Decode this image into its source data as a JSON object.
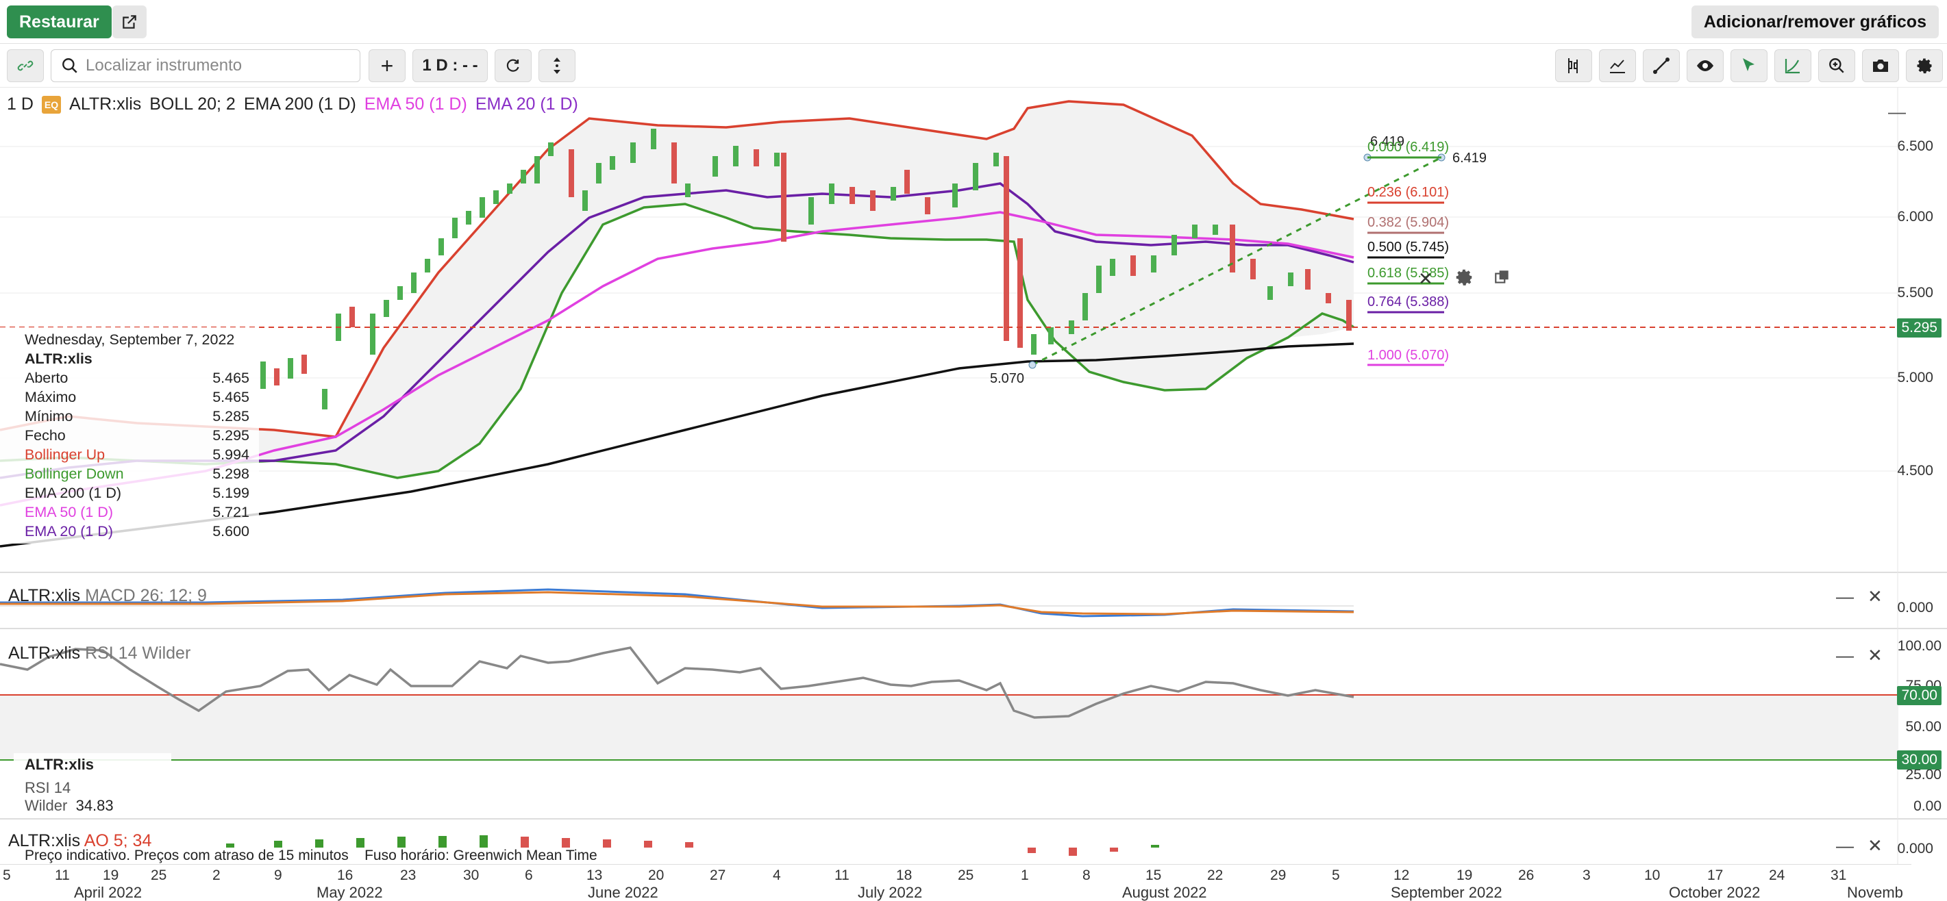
{
  "header": {
    "restore_label": "Restaurar",
    "add_remove_label": "Adicionar/remover gráficos"
  },
  "toolbar": {
    "search_placeholder": "Localizar instrumento",
    "interval_label": "1 D : - -",
    "plus_label": "+"
  },
  "legend": {
    "interval": "1 D",
    "badge": "EQ",
    "symbol": "ALTR:xlis",
    "boll": "BOLL 20; 2",
    "ema200": "EMA 200 (1 D)",
    "ema50": "EMA 50 (1 D)",
    "ema20": "EMA 20 (1 D)"
  },
  "colors": {
    "bollinger_up": "#d9412f",
    "bollinger_down": "#3d9a2e",
    "ema200": "#111111",
    "ema50": "#e040e0",
    "ema20": "#6a1fa5",
    "up_candle": "#4caf50",
    "down_candle": "#d9534f",
    "accent": "#2f8f4f"
  },
  "info": {
    "date": "Wednesday, September 7, 2022",
    "symbol": "ALTR:xlis",
    "rows": [
      {
        "label": "Aberto",
        "value": "5.465"
      },
      {
        "label": "Máximo",
        "value": "5.465"
      },
      {
        "label": "Mínimo",
        "value": "5.285"
      },
      {
        "label": "Fecho",
        "value": "5.295"
      },
      {
        "label": "Bollinger Up",
        "value": "5.994"
      },
      {
        "label": "Bollinger Down",
        "value": "5.298"
      },
      {
        "label": "EMA 200 (1 D)",
        "value": "5.199"
      },
      {
        "label": "EMA 50 (1 D)",
        "value": "5.721"
      },
      {
        "label": "EMA 20 (1 D)",
        "value": "5.600"
      }
    ]
  },
  "price_axis": {
    "ticks": [
      "6.500",
      "6.000",
      "5.500",
      "5.000",
      "4.500"
    ],
    "current_price": "5.295"
  },
  "fib": {
    "high_label": "6.419",
    "high_label_right": "6.419",
    "low_label": "5.070",
    "levels": [
      {
        "label": "0.000 (6.419)",
        "color": "#3d9a2e"
      },
      {
        "label": "0.236 (6.101)",
        "color": "#d9412f"
      },
      {
        "label": "0.382 (5.904)",
        "color": "#b07070"
      },
      {
        "label": "0.500 (5.745)",
        "color": "#111111"
      },
      {
        "label": "0.618 (5.585)",
        "color": "#3d9a2e"
      },
      {
        "label": "0.764 (5.388)",
        "color": "#6a1fa5"
      },
      {
        "label": "1.000 (5.070)",
        "color": "#e040e0"
      }
    ]
  },
  "macd": {
    "symbol": "ALTR:xlis",
    "name": "MACD 26; 12; 9",
    "axis_value": "0.000"
  },
  "rsi": {
    "symbol": "ALTR:xlis",
    "name": "RSI 14 Wilder",
    "ticks": [
      "100.00",
      "75.00",
      "50.00",
      "25.00",
      "0.00"
    ],
    "upper_tag": "70.00",
    "lower_tag": "30.00",
    "box_symbol": "ALTR:xlis",
    "box_label": "RSI 14 Wilder",
    "box_value": "34.83"
  },
  "ao": {
    "symbol": "ALTR:xlis",
    "name": "AO 5; 34",
    "axis_value": "0.000"
  },
  "notice": {
    "text": "Preço indicativo. Preços com atraso de 15 minutos",
    "tz": "Fuso horário: Greenwich Mean Time"
  },
  "xaxis": {
    "days": [
      "5",
      "11",
      "19",
      "25",
      "2",
      "9",
      "16",
      "23",
      "30",
      "6",
      "13",
      "20",
      "27",
      "4",
      "11",
      "18",
      "25",
      "1",
      "8",
      "15",
      "22",
      "29",
      "5",
      "12",
      "19",
      "26",
      "3",
      "10",
      "17",
      "24",
      "31"
    ],
    "months": [
      "April 2022",
      "May 2022",
      "June 2022",
      "July 2022",
      "August 2022",
      "September 2022",
      "October 2022",
      "Novemb"
    ]
  }
}
